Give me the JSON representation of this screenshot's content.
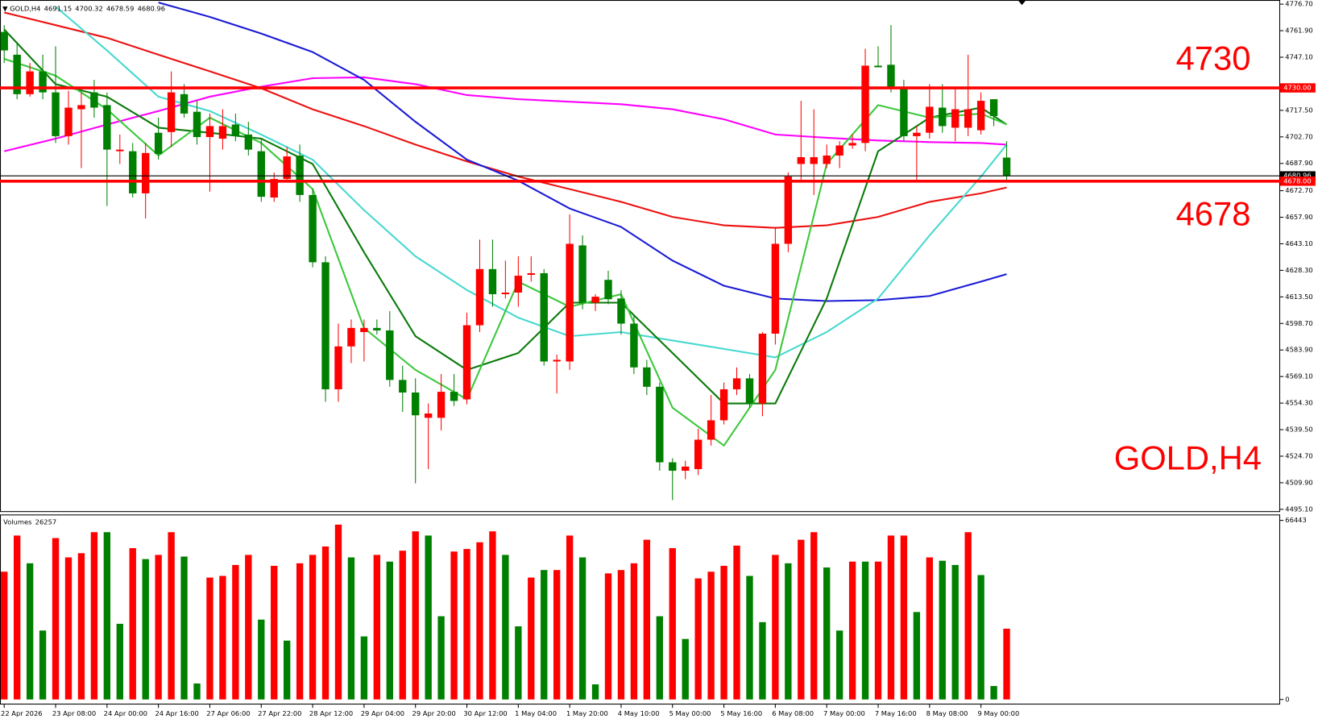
{
  "chart_data": {
    "type": "candlestick",
    "symbol": "GOLD,H4",
    "categories": [
      "22 Apr 2026",
      null,
      null,
      null,
      "23 Apr 08:00",
      null,
      null,
      null,
      "24 Apr 00:00",
      null,
      null,
      null,
      "24 Apr 16:00",
      null,
      null,
      null,
      "27 Apr 06:00",
      null,
      null,
      null,
      "27 Apr 22:00",
      null,
      null,
      null,
      "28 Apr 12:00",
      null,
      null,
      null,
      "29 Apr 04:00",
      null,
      null,
      null,
      "29 Apr 20:00",
      null,
      null,
      null,
      "30 Apr 12:00",
      null,
      null,
      null,
      "1 May 04:00",
      null,
      null,
      null,
      "1 May 20:00",
      null,
      null,
      null,
      "4 May 10:00",
      null,
      null,
      null,
      "5 May 00:00",
      null,
      null,
      null,
      "5 May 16:00",
      null,
      null,
      null,
      "6 May 08:00",
      null,
      null,
      null,
      "7 May 00:00",
      null,
      null,
      null,
      "7 May 16:00",
      null,
      null,
      null,
      "8 May 08:00",
      null,
      null,
      null,
      "9 May 00:00",
      null,
      null
    ],
    "open": [
      4761.2,
      4748.5,
      4726.5,
      4739.2,
      4727.5,
      4703.1,
      4718.1,
      4727.5,
      4720.4,
      4694.7,
      4694.7,
      4671.2,
      4705.0,
      4705.4,
      4726.5,
      4716.7,
      4702.6,
      4701.7,
      4709.6,
      4704.0,
      4694.7,
      4668.9,
      4679.2,
      4692.3,
      4670.3,
      4632.8,
      4562.0,
      4585.9,
      4593.9,
      4596.2,
      4594.8,
      4567.2,
      4560.2,
      4546.1,
      4546.1,
      4560.6,
      4556.4,
      4597.7,
      4629.0,
      4615.0,
      4615.9,
      4625.8,
      4626.7,
      4577.5,
      4577.5,
      4642.2,
      4610.3,
      4623.0,
      4612.6,
      4598.6,
      4574.2,
      4563.4,
      4521.3,
      4516.6,
      4517.5,
      4533.9,
      4544.7,
      4562.0,
      4568.1,
      4554.1,
      4593.0,
      4643.1,
      4687.6,
      4687.6,
      4687.6,
      4692.3,
      4697.9,
      4699.3,
      4742.4,
      4742.9,
      4729.8,
      4703.1,
      4705.0,
      4719.0,
      4707.8,
      4707.8,
      4706.4,
      4723.7,
      4691.15
    ],
    "high": [
      4765.0,
      4755.6,
      4743.9,
      4748.5,
      4753.2,
      4728.4,
      4727.5,
      4734.5,
      4727.5,
      4704.0,
      4699.3,
      4699.3,
      4713.4,
      4739.2,
      4732.1,
      4722.8,
      4715.7,
      4718.1,
      4715.7,
      4711.1,
      4701.7,
      4682.9,
      4697.0,
      4698.4,
      4673.6,
      4636.1,
      4598.6,
      4600.9,
      4600.9,
      4600.9,
      4605.6,
      4575.2,
      4568.1,
      4554.1,
      4570.5,
      4570.5,
      4604.7,
      4645.4,
      4645.4,
      4633.7,
      4636.1,
      4636.1,
      4629.0,
      4581.3,
      4659.5,
      4647.8,
      4615.0,
      4628.1,
      4617.3,
      4603.3,
      4578.4,
      4565.8,
      4523.6,
      4522.2,
      4540.0,
      4558.8,
      4565.8,
      4574.2,
      4570.5,
      4593.9,
      4652.5,
      4682.9,
      4722.8,
      4718.1,
      4698.4,
      4700.3,
      4704.0,
      4751.8,
      4753.2,
      4765.0,
      4734.5,
      4708.7,
      4732.1,
      4732.1,
      4729.8,
      4748.5,
      4727.5,
      4723.7,
      4700.32
    ],
    "low": [
      4743.9,
      4723.7,
      4725.1,
      4723.7,
      4699.3,
      4698.4,
      4685.3,
      4713.4,
      4664.2,
      4687.6,
      4668.9,
      4657.2,
      4690.0,
      4697.0,
      4713.4,
      4698.4,
      4672.2,
      4695.6,
      4700.3,
      4692.3,
      4666.5,
      4666.5,
      4678.3,
      4666.5,
      4630.0,
      4555.0,
      4555.0,
      4576.6,
      4577.5,
      4592.5,
      4563.4,
      4549.4,
      4509.6,
      4517.5,
      4539.1,
      4552.7,
      4553.6,
      4593.9,
      4608.0,
      4612.6,
      4608.0,
      4622.0,
      4575.2,
      4559.7,
      4572.8,
      4606.6,
      4605.6,
      4609.4,
      4592.5,
      4570.5,
      4558.8,
      4516.6,
      4500.2,
      4511.9,
      4514.2,
      4530.6,
      4542.4,
      4558.8,
      4551.7,
      4547.0,
      4586.9,
      4638.4,
      4678.3,
      4670.3,
      4685.3,
      4685.3,
      4696.1,
      4694.7,
      4741.5,
      4727.5,
      4700.3,
      4678.3,
      4701.7,
      4705.0,
      4700.3,
      4703.1,
      4704.0,
      4708.7,
      4678.59
    ],
    "close": [
      4750.9,
      4726.5,
      4739.2,
      4727.5,
      4703.1,
      4719.0,
      4720.4,
      4719.0,
      4695.6,
      4695.6,
      4671.2,
      4693.7,
      4693.2,
      4727.5,
      4715.7,
      4702.6,
      4708.7,
      4708.7,
      4703.1,
      4695.6,
      4669.3,
      4679.2,
      4691.8,
      4670.3,
      4632.8,
      4562.0,
      4585.9,
      4596.2,
      4596.2,
      4594.8,
      4567.2,
      4560.2,
      4547.5,
      4548.5,
      4560.6,
      4555.5,
      4597.7,
      4629.0,
      4615.0,
      4615.9,
      4625.3,
      4626.7,
      4577.5,
      4578.4,
      4643.1,
      4610.3,
      4613.6,
      4612.2,
      4598.6,
      4574.2,
      4563.4,
      4521.3,
      4516.6,
      4518.9,
      4533.9,
      4544.7,
      4562.0,
      4568.1,
      4554.1,
      4593.0,
      4643.1,
      4680.6,
      4691.4,
      4691.4,
      4692.3,
      4697.9,
      4699.3,
      4742.4,
      4741.5,
      4729.8,
      4703.1,
      4705.0,
      4719.5,
      4708.7,
      4718.1,
      4718.1,
      4722.8,
      4714.3,
      4680.96
    ],
    "bull_color": "#ff0000",
    "bear_color": "#008000",
    "ylim": [
      4493.6,
      4779.0
    ],
    "yticks": [
      {
        "value": 4776.7,
        "label": "4776.70"
      },
      {
        "value": 4761.9,
        "label": "4761.90"
      },
      {
        "value": 4747.1,
        "label": "4747.10"
      },
      {
        "value": 4717.5,
        "label": "4717.50"
      },
      {
        "value": 4702.7,
        "label": "4702.70"
      },
      {
        "value": 4687.9,
        "label": "4687.90"
      },
      {
        "value": 4672.7,
        "label": "4672.70"
      },
      {
        "value": 4657.9,
        "label": "4657.90"
      },
      {
        "value": 4643.1,
        "label": "4643.10"
      },
      {
        "value": 4628.3,
        "label": "4628.30"
      },
      {
        "value": 4613.5,
        "label": "4613.50"
      },
      {
        "value": 4598.7,
        "label": "4598.70"
      },
      {
        "value": 4583.9,
        "label": "4583.90"
      },
      {
        "value": 4569.1,
        "label": "4569.10"
      },
      {
        "value": 4554.3,
        "label": "4554.30"
      },
      {
        "value": 4539.5,
        "label": "4539.50"
      },
      {
        "value": 4524.7,
        "label": "4524.70"
      },
      {
        "value": 4509.9,
        "label": "4509.90"
      },
      {
        "value": 4495.1,
        "label": "4495.10"
      }
    ],
    "indicators": [
      {
        "color": "#ff00ff",
        "x": [
          0,
          4,
          8,
          12,
          16,
          20,
          24,
          28,
          32,
          36,
          40,
          44,
          48,
          52,
          56,
          60,
          64,
          68,
          72,
          76,
          78
        ],
        "values": [
          4694.7,
          4701.7,
          4709.6,
          4717.1,
          4725.1,
          4730.7,
          4735.4,
          4735.9,
          4732.1,
          4726.0,
          4723.7,
          4722.3,
          4720.9,
          4718.1,
          4712.5,
          4704.0,
          4702.2,
          4700.7,
          4699.8,
          4699.3,
          4698.4
        ]
      },
      {
        "color": "#ee1111",
        "x": [
          0,
          4,
          8,
          12,
          16,
          20,
          24,
          28,
          32,
          36,
          40,
          44,
          48,
          52,
          56,
          60,
          64,
          68,
          72,
          76,
          78
        ],
        "values": [
          4772.0,
          4765.0,
          4757.9,
          4748.5,
          4739.2,
          4729.8,
          4718.1,
          4708.7,
          4698.4,
          4689.0,
          4680.6,
          4673.6,
          4666.5,
          4658.1,
          4653.4,
          4652.0,
          4653.4,
          4658.1,
          4666.5,
          4671.2,
          4674.5
        ]
      },
      {
        "color": "#1a1ad6",
        "x": [
          0,
          4,
          8,
          12,
          16,
          20,
          24,
          28,
          32,
          36,
          40,
          44,
          48,
          52,
          56,
          60,
          64,
          68,
          72,
          76,
          78
        ],
        "values": [
          null,
          null,
          null,
          4777.6,
          4769.6,
          4760.3,
          4750.0,
          4734.5,
          4711.1,
          4690.0,
          4678.3,
          4662.8,
          4652.5,
          4633.7,
          4619.7,
          4612.6,
          4611.2,
          4611.7,
          4614.0,
          4622.0,
          4626.2
        ]
      },
      {
        "color": "#48d8d0",
        "x": [
          0,
          4,
          8,
          12,
          16,
          20,
          24,
          28,
          32,
          36,
          40,
          44,
          48,
          52,
          56,
          60,
          64,
          68,
          72,
          76,
          78
        ],
        "values": [
          null,
          4775.3,
          4750.9,
          4725.1,
          4717.1,
          4704.0,
          4690.0,
          4661.9,
          4636.1,
          4617.3,
          4601.9,
          4591.6,
          4593.9,
          4589.2,
          4584.5,
          4579.8,
          4593.9,
          4612.6,
          4647.8,
          4680.6,
          4698.4
        ]
      },
      {
        "color": "#0a7a0a",
        "x": [
          0,
          4,
          8,
          12,
          16,
          20,
          24,
          28,
          32,
          36,
          40,
          44,
          48,
          52,
          56,
          60,
          64,
          68,
          72,
          76,
          78
        ],
        "values": [
          4762.6,
          4732.1,
          4725.1,
          4707.8,
          4705.0,
          4701.7,
          4687.6,
          4638.4,
          4591.6,
          4572.8,
          4582.2,
          4610.3,
          4610.3,
          4582.2,
          4554.1,
          4554.1,
          4612.6,
          4694.7,
          4713.4,
          4719.0,
          4709.6
        ]
      },
      {
        "color": "#3cc83c",
        "x": [
          0,
          4,
          8,
          12,
          16,
          20,
          24,
          28,
          32,
          36,
          40,
          44,
          48,
          52,
          56,
          60,
          64,
          68,
          72,
          76,
          78
        ],
        "values": [
          4746.2,
          4736.8,
          4718.1,
          4692.3,
          4713.4,
          4699.3,
          4673.6,
          4596.2,
          4572.8,
          4556.4,
          4622.0,
          4608.0,
          4615.0,
          4551.7,
          4530.6,
          4572.8,
          4687.6,
          4720.4,
          4713.4,
          4715.7,
          4709.6
        ]
      }
    ],
    "levels": [
      {
        "value": 4730,
        "tag": "4730.00",
        "color": "#ff0000"
      },
      {
        "value": 4678,
        "tag": "4678.00",
        "color": "#ff0000"
      }
    ],
    "volume": {
      "label": "Volumes",
      "values": [
        47409,
        60821,
        50528,
        25576,
        59885,
        52711,
        54271,
        62068,
        62068,
        28071,
        56142,
        52087,
        53647,
        62068,
        53023,
        5926,
        45226,
        45849,
        49904,
        53647,
        29631,
        49592,
        21833,
        50528,
        53647,
        56766,
        64875,
        52711,
        23393,
        53647,
        51152,
        55206,
        62380,
        60821,
        30878,
        54894,
        55830,
        58325,
        62380,
        53647,
        27135,
        45226,
        48033,
        48033,
        60821,
        52711,
        5614,
        46785,
        48033,
        50528,
        59261,
        30878,
        56142,
        22457,
        44914,
        47409,
        49592,
        57078,
        45849,
        28695,
        53647,
        50528,
        59261,
        62068,
        48968,
        25576,
        51152,
        51152,
        51152,
        60821,
        60821,
        32438,
        52711,
        51464,
        49904,
        62068,
        46161,
        4990,
        26257
      ],
      "colors": [
        "#ff0000",
        "#ff0000",
        "#008000",
        "#008000",
        "#ff0000",
        "#ff0000",
        "#ff0000",
        "#ff0000",
        "#008000",
        "#008000",
        "#ff0000",
        "#008000",
        "#ff0000",
        "#ff0000",
        "#008000",
        "#008000",
        "#ff0000",
        "#ff0000",
        "#ff0000",
        "#ff0000",
        "#008000",
        "#ff0000",
        "#008000",
        "#ff0000",
        "#ff0000",
        "#ff0000",
        "#ff0000",
        "#008000",
        "#008000",
        "#ff0000",
        "#008000",
        "#ff0000",
        "#ff0000",
        "#008000",
        "#008000",
        "#ff0000",
        "#ff0000",
        "#ff0000",
        "#ff0000",
        "#008000",
        "#008000",
        "#ff0000",
        "#008000",
        "#ff0000",
        "#ff0000",
        "#008000",
        "#008000",
        "#ff0000",
        "#ff0000",
        "#ff0000",
        "#ff0000",
        "#008000",
        "#ff0000",
        "#008000",
        "#ff0000",
        "#ff0000",
        "#ff0000",
        "#ff0000",
        "#008000",
        "#008000",
        "#ff0000",
        "#008000",
        "#ff0000",
        "#ff0000",
        "#008000",
        "#008000",
        "#ff0000",
        "#008000",
        "#ff0000",
        "#ff0000",
        "#ff0000",
        "#008000",
        "#ff0000",
        "#008000",
        "#008000",
        "#ff0000",
        "#008000",
        "#008000",
        "#ff0000"
      ],
      "ylim": [
        0,
        66443
      ],
      "yticks": [
        0,
        66443
      ]
    }
  }
}
